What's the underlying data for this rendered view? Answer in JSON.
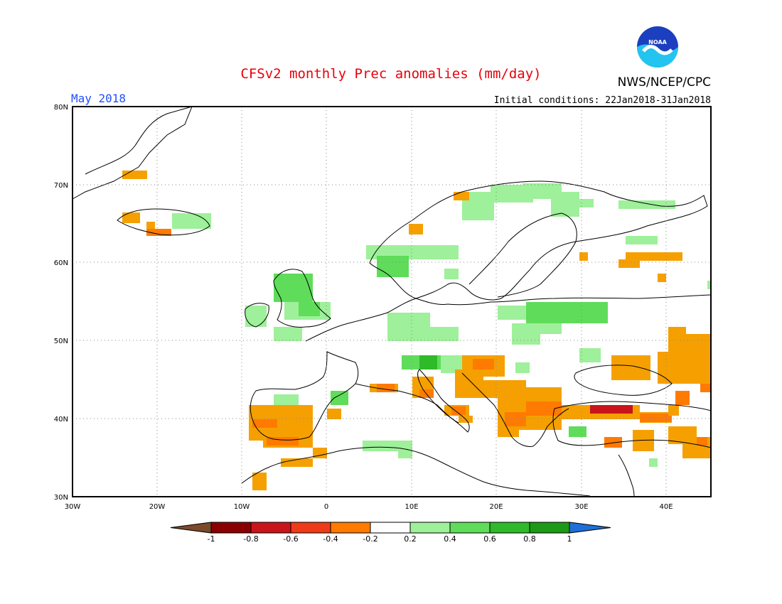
{
  "header": {
    "title": "CFSv2 monthly Prec anomalies (mm/day)",
    "month": "May 2018",
    "initial_conditions": "Initial conditions: 22Jan2018-31Jan2018",
    "agency": "NWS/NCEP/CPC",
    "logo_text": "NOAA"
  },
  "colors": {
    "title": "#e8000b",
    "month": "#1f4fff",
    "neg_strong": "#8a0000",
    "neg_1": "#c8141a",
    "neg_08": "#ee3a18",
    "neg_06": "#ff7a00",
    "neg_04": "#f5a000",
    "neutral": "#ffffff",
    "pos_02": "#9ef09a",
    "pos_04": "#5fdc5a",
    "pos_06": "#2fba2a",
    "pos_08": "#1c9a16",
    "pos_over": "#1e6fd8",
    "neg_over": "#7a4a2a"
  },
  "map": {
    "lat_labels": [
      "80N",
      "70N",
      "60N",
      "50N",
      "40N",
      "30N"
    ],
    "lon_labels": [
      "30W",
      "20W",
      "10W",
      "0",
      "10E",
      "20E",
      "30E",
      "40E"
    ]
  },
  "legend": {
    "tick_labels": [
      "-1",
      "-0.8",
      "-0.6",
      "-0.4",
      "-0.2",
      "0.2",
      "0.4",
      "0.6",
      "0.8",
      "1"
    ]
  }
}
